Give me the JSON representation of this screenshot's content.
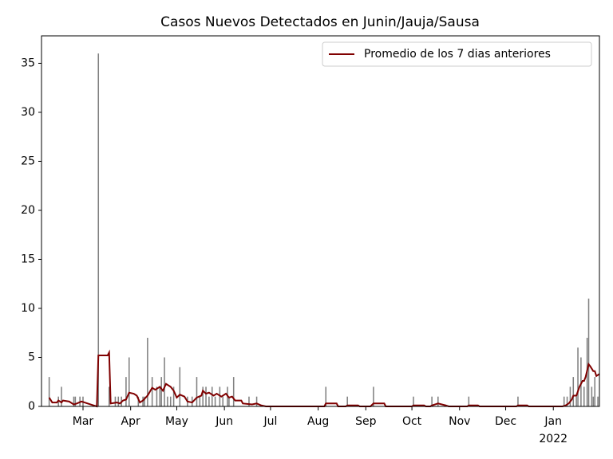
{
  "chart_data": {
    "type": "bar_line",
    "title": "Casos Nuevos Detectados en Junin/Jauja/Sausa",
    "xlim": [
      "2021-02-02",
      "2022-01-31"
    ],
    "xticks": [
      {
        "value": "2021-03-01",
        "label": "Mar"
      },
      {
        "value": "2021-04-01",
        "label": "Apr"
      },
      {
        "value": "2021-05-01",
        "label": "May"
      },
      {
        "value": "2021-06-01",
        "label": "Jun"
      },
      {
        "value": "2021-07-01",
        "label": "Jul"
      },
      {
        "value": "2021-08-01",
        "label": "Aug"
      },
      {
        "value": "2021-09-01",
        "label": "Sep"
      },
      {
        "value": "2021-10-01",
        "label": "Oct"
      },
      {
        "value": "2021-11-01",
        "label": "Nov"
      },
      {
        "value": "2021-12-01",
        "label": "Dec"
      },
      {
        "value": "2022-01-01",
        "label": "Jan\n2022"
      }
    ],
    "ylim": [
      0,
      37.8
    ],
    "yticks": [
      0,
      5,
      10,
      15,
      20,
      25,
      30,
      35
    ],
    "legend": "upper right",
    "bars": {
      "color": "#808080",
      "x": [
        "2021-02-07",
        "2021-02-13",
        "2021-02-15",
        "2021-02-23",
        "2021-02-24",
        "2021-02-27",
        "2021-03-01",
        "2021-03-11",
        "2021-03-18",
        "2021-03-22",
        "2021-03-24",
        "2021-03-26",
        "2021-03-29",
        "2021-03-31",
        "2021-04-06",
        "2021-04-09",
        "2021-04-10",
        "2021-04-12",
        "2021-04-15",
        "2021-04-18",
        "2021-04-20",
        "2021-04-21",
        "2021-04-23",
        "2021-04-25",
        "2021-04-27",
        "2021-04-29",
        "2021-05-03",
        "2021-05-08",
        "2021-05-11",
        "2021-05-14",
        "2021-05-16",
        "2021-05-18",
        "2021-05-20",
        "2021-05-22",
        "2021-05-24",
        "2021-05-26",
        "2021-05-29",
        "2021-05-31",
        "2021-06-03",
        "2021-06-04",
        "2021-06-07",
        "2021-06-17",
        "2021-06-22",
        "2021-08-06",
        "2021-08-20",
        "2021-09-06",
        "2021-10-02",
        "2021-10-14",
        "2021-10-18",
        "2021-11-07",
        "2021-12-09",
        "2022-01-08",
        "2022-01-10",
        "2022-01-12",
        "2022-01-14",
        "2022-01-16",
        "2022-01-17",
        "2022-01-19",
        "2022-01-21",
        "2022-01-23",
        "2022-01-24",
        "2022-01-26",
        "2022-01-27",
        "2022-01-28",
        "2022-01-30"
      ],
      "values": [
        3,
        1,
        2,
        1,
        1,
        1,
        1,
        36,
        2,
        1,
        1,
        1,
        3,
        5,
        1,
        1,
        1,
        7,
        3,
        2,
        2,
        3,
        5,
        1,
        1,
        2,
        4,
        1,
        1,
        3,
        1,
        2,
        2,
        1,
        2,
        1,
        2,
        1,
        2,
        1,
        3,
        1,
        1,
        2,
        1,
        2,
        1,
        1,
        1,
        1,
        1,
        1,
        1,
        2,
        3,
        1,
        6,
        5,
        2,
        7,
        11,
        2,
        1,
        3,
        1
      ]
    },
    "line": {
      "name": "Promedio de los 7 dias anteriores",
      "color": "#800000",
      "x": [
        "2021-02-07",
        "2021-02-09",
        "2021-02-12",
        "2021-02-13",
        "2021-02-15",
        "2021-02-16",
        "2021-02-20",
        "2021-02-23",
        "2021-02-25",
        "2021-02-28",
        "2021-03-04",
        "2021-03-08",
        "2021-03-10",
        "2021-03-11",
        "2021-03-17",
        "2021-03-18",
        "2021-03-19",
        "2021-03-23",
        "2021-03-25",
        "2021-03-27",
        "2021-03-29",
        "2021-03-31",
        "2021-04-03",
        "2021-04-05",
        "2021-04-07",
        "2021-04-09",
        "2021-04-12",
        "2021-04-15",
        "2021-04-17",
        "2021-04-20",
        "2021-04-22",
        "2021-04-24",
        "2021-04-27",
        "2021-04-29",
        "2021-05-01",
        "2021-05-03",
        "2021-05-06",
        "2021-05-08",
        "2021-05-11",
        "2021-05-14",
        "2021-05-17",
        "2021-05-18",
        "2021-05-20",
        "2021-05-22",
        "2021-05-25",
        "2021-05-27",
        "2021-05-30",
        "2021-06-02",
        "2021-06-04",
        "2021-06-06",
        "2021-06-08",
        "2021-06-12",
        "2021-06-13",
        "2021-06-19",
        "2021-06-22",
        "2021-06-25",
        "2021-06-28",
        "2021-08-05",
        "2021-08-06",
        "2021-08-13",
        "2021-08-14",
        "2021-08-19",
        "2021-08-20",
        "2021-08-27",
        "2021-08-28",
        "2021-09-04",
        "2021-09-06",
        "2021-09-13",
        "2021-09-14",
        "2021-10-01",
        "2021-10-02",
        "2021-10-09",
        "2021-10-10",
        "2021-10-13",
        "2021-10-14",
        "2021-10-18",
        "2021-10-23",
        "2021-10-25",
        "2021-11-06",
        "2021-11-07",
        "2021-11-13",
        "2021-11-14",
        "2021-12-08",
        "2021-12-09",
        "2021-12-15",
        "2021-12-16",
        "2022-01-07",
        "2022-01-09",
        "2022-01-11",
        "2022-01-13",
        "2022-01-14",
        "2022-01-16",
        "2022-01-18",
        "2022-01-20",
        "2022-01-21",
        "2022-01-22",
        "2022-01-24",
        "2022-01-25",
        "2022-01-27",
        "2022-01-28",
        "2022-01-29",
        "2022-01-31"
      ],
      "values": [
        0.9,
        0.4,
        0.4,
        0.6,
        0.4,
        0.6,
        0.5,
        0.2,
        0.3,
        0.5,
        0.3,
        0.1,
        0,
        5.2,
        5.2,
        5.5,
        0.3,
        0.4,
        0.3,
        0.6,
        0.7,
        1.4,
        1.3,
        1.1,
        0.4,
        0.6,
        1.1,
        1.9,
        1.7,
        2.0,
        1.6,
        2.3,
        2.0,
        1.6,
        0.9,
        1.2,
        1.0,
        0.5,
        0.4,
        0.9,
        1.1,
        1.6,
        1.3,
        1.4,
        1.1,
        1.3,
        1.0,
        1.3,
        0.9,
        1.0,
        0.6,
        0.6,
        0.3,
        0.2,
        0.3,
        0.1,
        0,
        0,
        0.3,
        0.3,
        0,
        0,
        0.1,
        0.1,
        0,
        0,
        0.3,
        0.3,
        0,
        0,
        0.1,
        0.1,
        0,
        0,
        0.1,
        0.3,
        0.1,
        0,
        0,
        0.1,
        0.1,
        0,
        0,
        0.1,
        0.1,
        0,
        0,
        0.1,
        0.3,
        0.7,
        1.1,
        1.1,
        2.0,
        2.6,
        2.6,
        3.0,
        4.3,
        4.1,
        3.6,
        3.6,
        3.1,
        3.3
      ]
    }
  }
}
